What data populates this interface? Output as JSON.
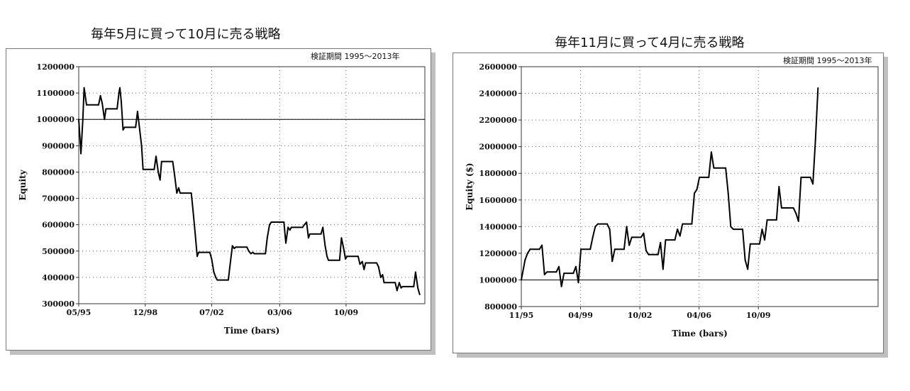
{
  "chart_data": [
    {
      "type": "line",
      "title": "毎年5月に買って10月に売る戦略",
      "subtitle": "検証期間 1995～2013年",
      "xlabel": "Time (bars)",
      "ylabel": "Equity",
      "ylim": [
        300000,
        1200000
      ],
      "yticks": [
        300000,
        400000,
        500000,
        600000,
        700000,
        800000,
        900000,
        1000000,
        1100000,
        1200000
      ],
      "xlim": [
        1995.33,
        2014.0
      ],
      "xticks": [
        {
          "label": "05/95",
          "x": 1995.33
        },
        {
          "label": "12/98",
          "x": 1998.92
        },
        {
          "label": "07/02",
          "x": 2002.5
        },
        {
          "label": "03/06",
          "x": 2006.17
        },
        {
          "label": "10/09",
          "x": 2009.75
        }
      ],
      "reference_line": 1000000,
      "grid": true,
      "series": [
        {
          "x": [
            1995.33,
            1995.45,
            1995.55,
            1995.62,
            1995.7,
            1995.75,
            1996.4,
            1996.5,
            1996.6,
            1996.72,
            1996.8,
            1997.4,
            1997.5,
            1997.55,
            1997.62,
            1997.72,
            1997.8,
            1998.4,
            1998.5,
            1998.62,
            1998.72,
            1998.8,
            1998.92,
            1999.4,
            1999.5,
            1999.62,
            1999.72,
            1999.8,
            2000.4,
            2000.5,
            2000.62,
            2000.72,
            2000.8,
            2001.4,
            2001.5,
            2001.62,
            2001.72,
            2001.8,
            2002.4,
            2002.5,
            2002.62,
            2002.72,
            2002.8,
            2003.4,
            2003.5,
            2003.62,
            2003.72,
            2003.8,
            2004.4,
            2004.5,
            2004.62,
            2004.72,
            2004.8,
            2005.4,
            2005.5,
            2005.62,
            2005.72,
            2005.8,
            2006.4,
            2006.5,
            2006.62,
            2006.72,
            2006.8,
            2007.4,
            2007.5,
            2007.62,
            2007.72,
            2007.8,
            2008.4,
            2008.5,
            2008.62,
            2008.72,
            2008.8,
            2009.4,
            2009.5,
            2009.62,
            2009.72,
            2009.8,
            2010.4,
            2010.5,
            2010.62,
            2010.72,
            2010.8,
            2011.4,
            2011.5,
            2011.62,
            2011.72,
            2011.8,
            2012.4,
            2012.5,
            2012.62,
            2012.72,
            2012.8,
            2013.4,
            2013.5,
            2013.62,
            2013.72
          ],
          "values": [
            1000000,
            870000,
            1000000,
            1120000,
            1080000,
            1055000,
            1055000,
            1090000,
            1060000,
            1000000,
            1040000,
            1040000,
            1100000,
            1120000,
            1070000,
            960000,
            970000,
            970000,
            1030000,
            960000,
            900000,
            810000,
            810000,
            810000,
            860000,
            800000,
            770000,
            840000,
            840000,
            790000,
            720000,
            740000,
            720000,
            720000,
            650000,
            560000,
            480000,
            495000,
            495000,
            470000,
            420000,
            400000,
            390000,
            390000,
            450000,
            520000,
            510000,
            515000,
            515000,
            500000,
            490000,
            495000,
            490000,
            490000,
            550000,
            600000,
            610000,
            610000,
            610000,
            530000,
            590000,
            580000,
            590000,
            590000,
            600000,
            610000,
            550000,
            565000,
            565000,
            590000,
            520000,
            480000,
            465000,
            465000,
            550000,
            510000,
            470000,
            480000,
            480000,
            450000,
            460000,
            430000,
            455000,
            455000,
            440000,
            400000,
            410000,
            380000,
            380000,
            350000,
            380000,
            360000,
            365000,
            365000,
            420000,
            360000,
            335000
          ]
        }
      ]
    },
    {
      "type": "line",
      "title": "毎年11月に買って4月に売る戦略",
      "subtitle": "検証期間 1995～2013年",
      "xlabel": "Time (bars)",
      "ylabel": "Equity ($)",
      "ylim": [
        800000,
        2600000
      ],
      "yticks": [
        800000,
        1000000,
        1200000,
        1400000,
        1600000,
        1800000,
        2000000,
        2200000,
        2400000,
        2600000
      ],
      "xlim": [
        1995.83,
        2016.9
      ],
      "xticks": [
        {
          "label": "11/95",
          "x": 1995.83
        },
        {
          "label": "04/99",
          "x": 1999.33
        },
        {
          "label": "10/02",
          "x": 2002.83
        },
        {
          "label": "04/06",
          "x": 2006.33
        },
        {
          "label": "10/09",
          "x": 2009.83
        }
      ],
      "reference_line": 1000000,
      "grid": true,
      "series": [
        {
          "x": [
            1995.83,
            1996.05,
            1996.2,
            1996.35,
            1996.9,
            1997.05,
            1997.2,
            1997.35,
            1997.9,
            1998.05,
            1998.2,
            1998.35,
            1998.9,
            1999.05,
            1999.2,
            1999.35,
            1999.9,
            2000.05,
            2000.2,
            2000.35,
            2000.9,
            2001.05,
            2001.2,
            2001.35,
            2001.9,
            2002.05,
            2002.2,
            2002.35,
            2002.9,
            2003.05,
            2003.2,
            2003.35,
            2003.9,
            2004.05,
            2004.2,
            2004.35,
            2004.9,
            2005.05,
            2005.2,
            2005.35,
            2005.9,
            2006.05,
            2006.2,
            2006.35,
            2006.9,
            2007.05,
            2007.2,
            2007.35,
            2007.9,
            2008.05,
            2008.2,
            2008.35,
            2008.9,
            2009.05,
            2009.2,
            2009.35,
            2009.9,
            2010.05,
            2010.2,
            2010.35,
            2010.9,
            2011.05,
            2011.2,
            2011.35,
            2011.9,
            2012.05,
            2012.2,
            2012.35,
            2012.9,
            2013.05,
            2013.2,
            2013.35
          ],
          "values": [
            1000000,
            1150000,
            1200000,
            1230000,
            1230000,
            1260000,
            1040000,
            1060000,
            1060000,
            1100000,
            950000,
            1050000,
            1050000,
            1100000,
            980000,
            1230000,
            1230000,
            1320000,
            1400000,
            1420000,
            1420000,
            1380000,
            1140000,
            1230000,
            1230000,
            1400000,
            1260000,
            1320000,
            1320000,
            1350000,
            1220000,
            1190000,
            1190000,
            1280000,
            1080000,
            1300000,
            1300000,
            1380000,
            1330000,
            1420000,
            1420000,
            1650000,
            1680000,
            1770000,
            1770000,
            1960000,
            1840000,
            1840000,
            1840000,
            1650000,
            1400000,
            1380000,
            1380000,
            1150000,
            1080000,
            1270000,
            1270000,
            1380000,
            1300000,
            1450000,
            1450000,
            1700000,
            1540000,
            1540000,
            1540000,
            1500000,
            1440000,
            1770000,
            1770000,
            1720000,
            2050000,
            2440000
          ]
        }
      ]
    }
  ]
}
